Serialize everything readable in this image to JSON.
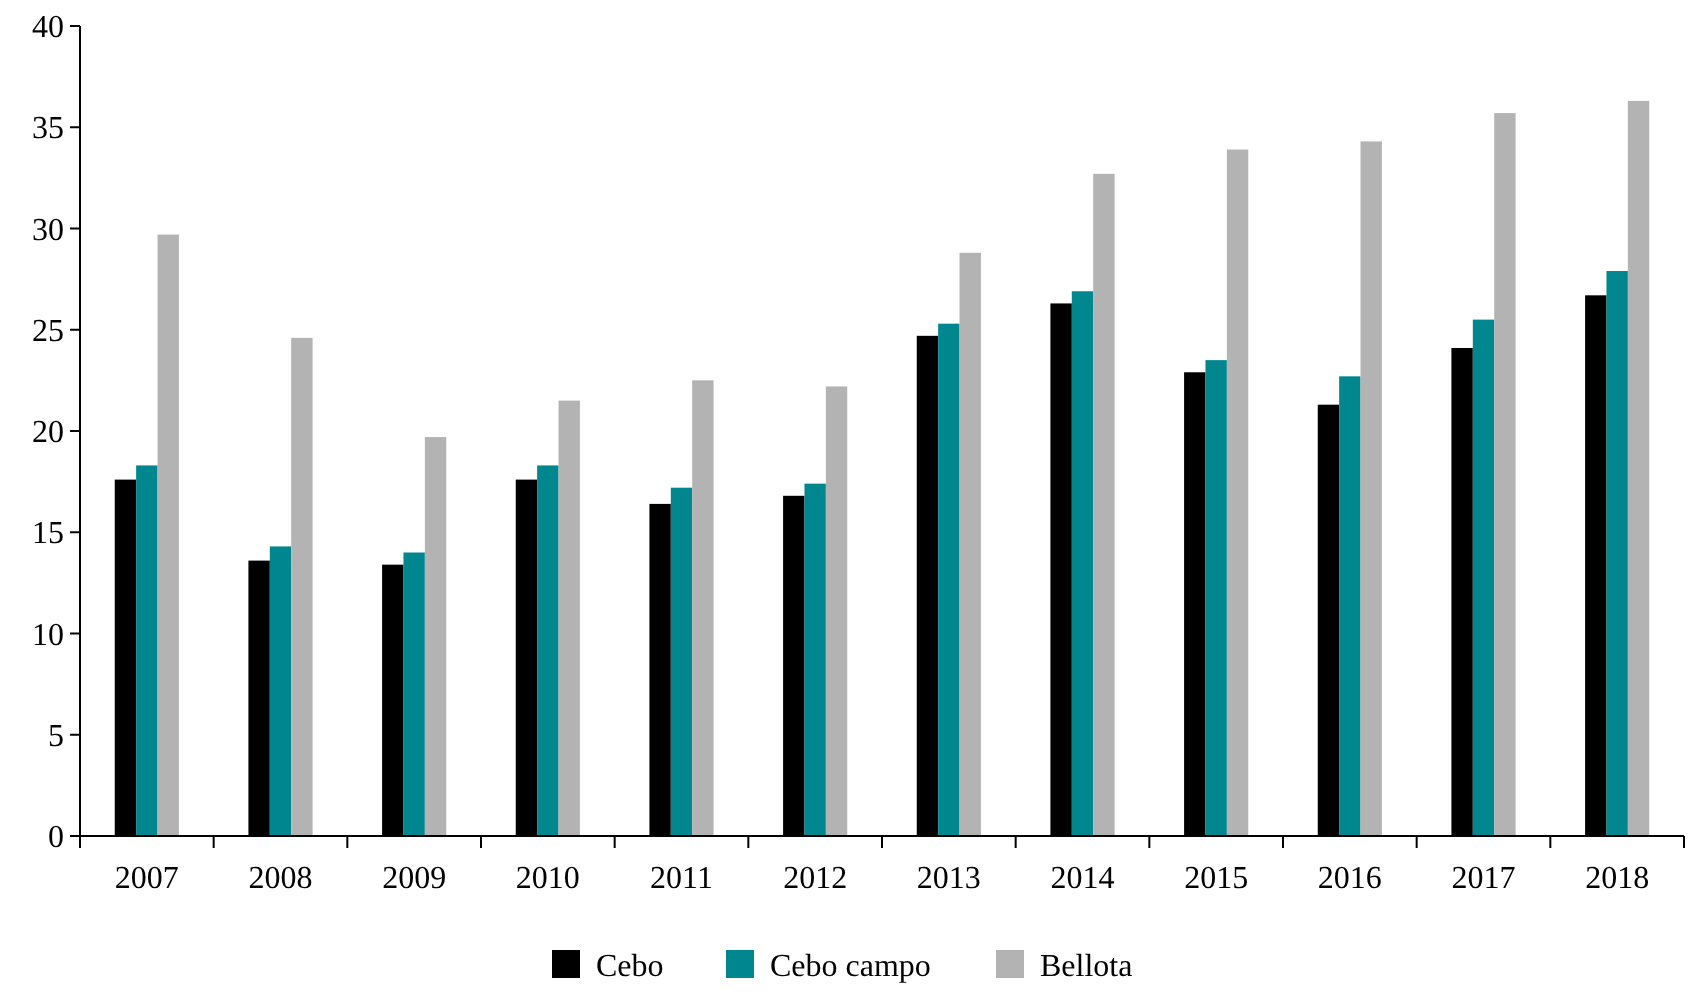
{
  "chart_data": {
    "type": "bar",
    "categories": [
      "2007",
      "2008",
      "2009",
      "2010",
      "2011",
      "2012",
      "2013",
      "2014",
      "2015",
      "2016",
      "2017",
      "2018"
    ],
    "series": [
      {
        "name": "Cebo",
        "color": "#000000",
        "values": [
          17.6,
          13.6,
          13.4,
          17.6,
          16.4,
          16.8,
          24.7,
          26.3,
          22.9,
          21.3,
          24.1,
          26.7
        ]
      },
      {
        "name": "Cebo campo",
        "color": "#00868f",
        "values": [
          18.3,
          14.3,
          14.0,
          18.3,
          17.2,
          17.4,
          25.3,
          26.9,
          23.5,
          22.7,
          25.5,
          27.9
        ]
      },
      {
        "name": "Bellota",
        "color": "#b3b3b3",
        "values": [
          29.7,
          24.6,
          19.7,
          21.5,
          22.5,
          22.2,
          28.8,
          32.7,
          33.9,
          34.3,
          35.7,
          36.3
        ]
      }
    ],
    "ylim": [
      0,
      40
    ],
    "yticks": [
      0,
      5,
      10,
      15,
      20,
      25,
      30,
      35,
      40
    ],
    "grid": false,
    "legend": "bottom"
  }
}
